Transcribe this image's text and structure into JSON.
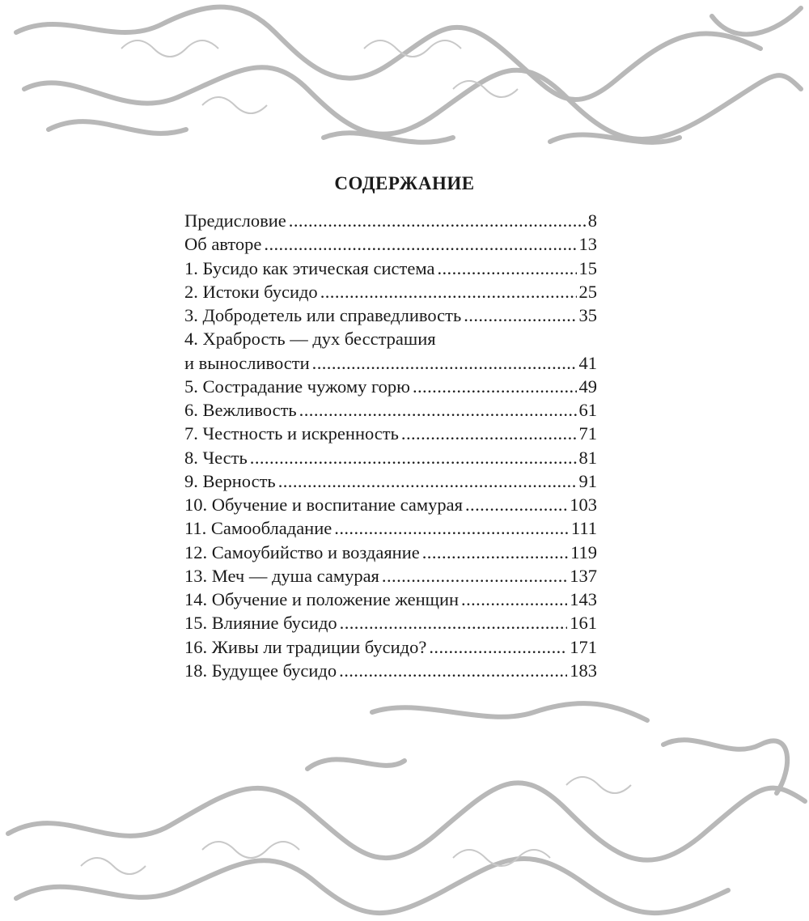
{
  "heading": "СОДЕРЖАНИЕ",
  "ornament_color": "#b8b8b8",
  "entries": [
    {
      "title": "Предисловие",
      "page": "8"
    },
    {
      "title": "Об авторе",
      "page": "13"
    },
    {
      "title": "1. Бусидо как этическая система",
      "page": "15"
    },
    {
      "title": "2. Истоки бусидо",
      "page": "25"
    },
    {
      "title": "3. Добродетель или справедливость",
      "page": "35"
    },
    {
      "title": "4. Храбрость — дух бесстрашия",
      "continuation": "и выносливости",
      "page": "41"
    },
    {
      "title": "5. Сострадание чужому горю",
      "page": "49"
    },
    {
      "title": "6. Вежливость",
      "page": "61"
    },
    {
      "title": "7. Честность и искренность",
      "page": "71"
    },
    {
      "title": "8. Честь",
      "page": "81"
    },
    {
      "title": "9. Верность",
      "page": "91"
    },
    {
      "title": "10. Обучение и воспитание самурая",
      "page": "103"
    },
    {
      "title": "11. Самообладание",
      "page": "111"
    },
    {
      "title": "12. Самоубийство и воздаяние",
      "page": "119"
    },
    {
      "title": "13. Меч — душа самурая",
      "page": "137"
    },
    {
      "title": "14. Обучение и положение женщин",
      "page": "143"
    },
    {
      "title": "15. Влияние бусидо",
      "page": "161"
    },
    {
      "title": "16. Живы ли традиции бусидо?",
      "page": "171"
    },
    {
      "title": "18. Будущее бусидо",
      "page": "183"
    }
  ]
}
